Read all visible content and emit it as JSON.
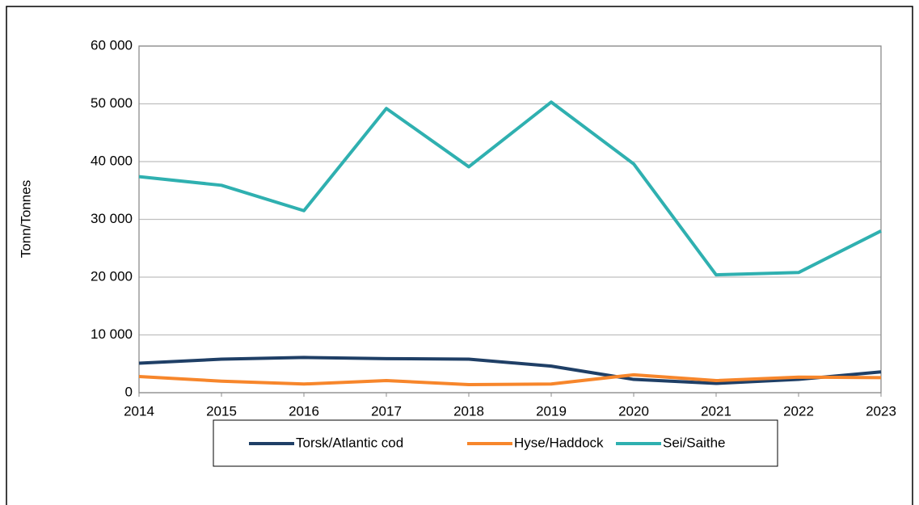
{
  "chart_data": {
    "type": "line",
    "y_label": "Tonn/Tonnes",
    "x": [
      2014,
      2015,
      2016,
      2017,
      2018,
      2019,
      2020,
      2021,
      2022,
      2023
    ],
    "xlim": [
      2014,
      2023
    ],
    "xticks": [
      2014,
      2015,
      2016,
      2017,
      2018,
      2019,
      2020,
      2021,
      2022,
      2023
    ],
    "ylim": [
      0,
      60000
    ],
    "yticks": [
      0,
      {
        "value": 10000,
        "label": "10 000"
      },
      {
        "value": 20000,
        "label": "20 000"
      },
      {
        "value": 30000,
        "label": "30 000"
      },
      {
        "value": 40000,
        "label": "40 000"
      },
      {
        "value": 50000,
        "label": "50 000"
      },
      {
        "value": 60000,
        "label": "60 000"
      }
    ],
    "grid": true,
    "legend": "bottom",
    "series": [
      {
        "name": "Torsk/Atlantic cod",
        "color": "#1f3f66",
        "values": [
          5100,
          5800,
          6100,
          5900,
          5800,
          4600,
          2300,
          1600,
          2300,
          3600
        ]
      },
      {
        "name": "Hyse/Haddock",
        "color": "#f7862b",
        "values": [
          2800,
          2000,
          1500,
          2100,
          1400,
          1500,
          3100,
          2100,
          2700,
          2600
        ]
      },
      {
        "name": "Sei/Saithe",
        "color": "#2fb0b0",
        "values": [
          37400,
          35900,
          31500,
          49200,
          39100,
          50300,
          39600,
          20400,
          20800,
          28000
        ]
      }
    ]
  }
}
